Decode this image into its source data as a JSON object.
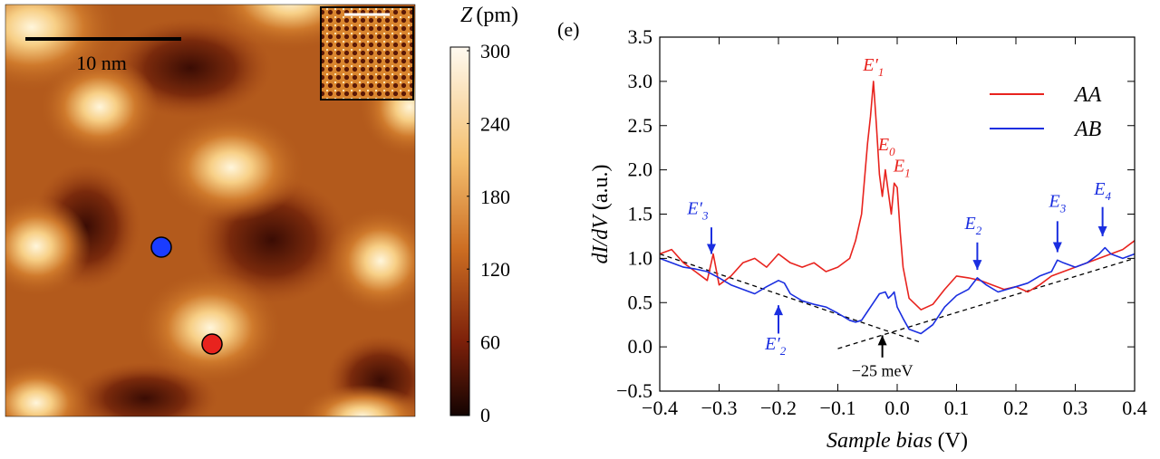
{
  "stm_panel": {
    "scalebar_label": "10 nm",
    "colorbar": {
      "title_var": "Z",
      "title_unit": "(pm)",
      "ticks": [
        "300",
        "240",
        "180",
        "120",
        "60",
        "0"
      ],
      "colors": [
        "#fffaf0",
        "#f7c67c",
        "#c8691f",
        "#7a1f0a",
        "#1a0502"
      ]
    },
    "markers": [
      {
        "name": "blue-marker",
        "color": "#1a3cff"
      },
      {
        "name": "red-marker",
        "color": "#e8231e"
      }
    ]
  },
  "chart_data": {
    "type": "line",
    "panel_label": "(e)",
    "xlabel_main": "Sample bias",
    "xlabel_unit": "(V)",
    "ylabel_main": "dI/dV",
    "ylabel_unit": "(a.u.)",
    "xlim": [
      -0.4,
      0.4
    ],
    "ylim": [
      -0.5,
      3.5
    ],
    "xticks": [
      "-0.4",
      "-0.3",
      "-0.2",
      "-0.1",
      "0.0",
      "0.1",
      "0.2",
      "0.3",
      "0.4"
    ],
    "yticks": [
      "-0.5",
      "0.0",
      "0.5",
      "1.0",
      "1.5",
      "2.0",
      "2.5",
      "3.0",
      "3.5"
    ],
    "legend_position": "top-right",
    "series": [
      {
        "name": "AA",
        "color": "#e8231e",
        "x": [
          -0.4,
          -0.38,
          -0.36,
          -0.34,
          -0.32,
          -0.31,
          -0.3,
          -0.28,
          -0.26,
          -0.24,
          -0.22,
          -0.2,
          -0.18,
          -0.16,
          -0.14,
          -0.12,
          -0.1,
          -0.08,
          -0.07,
          -0.06,
          -0.055,
          -0.05,
          -0.045,
          -0.04,
          -0.035,
          -0.03,
          -0.025,
          -0.02,
          -0.015,
          -0.01,
          -0.005,
          0.0,
          0.005,
          0.01,
          0.02,
          0.04,
          0.06,
          0.08,
          0.1,
          0.12,
          0.14,
          0.16,
          0.18,
          0.2,
          0.22,
          0.24,
          0.26,
          0.28,
          0.3,
          0.32,
          0.34,
          0.36,
          0.38,
          0.4
        ],
        "y": [
          1.05,
          1.1,
          0.95,
          0.85,
          0.75,
          1.05,
          0.7,
          0.8,
          0.95,
          1.0,
          0.9,
          1.05,
          0.95,
          0.9,
          0.95,
          0.85,
          0.9,
          1.0,
          1.2,
          1.5,
          1.9,
          2.3,
          2.6,
          3.0,
          2.5,
          1.95,
          1.7,
          2.0,
          1.75,
          1.5,
          1.85,
          1.8,
          1.3,
          0.9,
          0.55,
          0.42,
          0.48,
          0.65,
          0.8,
          0.78,
          0.75,
          0.7,
          0.65,
          0.68,
          0.62,
          0.7,
          0.8,
          0.85,
          0.9,
          0.95,
          1.0,
          1.05,
          1.1,
          1.2
        ]
      },
      {
        "name": "AB",
        "color": "#1a2ee0",
        "x": [
          -0.4,
          -0.38,
          -0.36,
          -0.34,
          -0.32,
          -0.3,
          -0.28,
          -0.26,
          -0.24,
          -0.22,
          -0.2,
          -0.19,
          -0.18,
          -0.16,
          -0.14,
          -0.12,
          -0.1,
          -0.08,
          -0.07,
          -0.06,
          -0.05,
          -0.04,
          -0.03,
          -0.02,
          -0.015,
          -0.01,
          -0.005,
          0.0,
          0.01,
          0.02,
          0.04,
          0.06,
          0.08,
          0.1,
          0.12,
          0.135,
          0.15,
          0.17,
          0.2,
          0.22,
          0.24,
          0.26,
          0.27,
          0.28,
          0.3,
          0.32,
          0.34,
          0.35,
          0.36,
          0.38,
          0.4
        ],
        "y": [
          1.0,
          0.95,
          0.9,
          0.88,
          0.85,
          0.78,
          0.7,
          0.65,
          0.6,
          0.68,
          0.75,
          0.72,
          0.6,
          0.52,
          0.48,
          0.45,
          0.38,
          0.3,
          0.28,
          0.3,
          0.4,
          0.5,
          0.6,
          0.62,
          0.55,
          0.58,
          0.62,
          0.45,
          0.32,
          0.2,
          0.15,
          0.25,
          0.45,
          0.58,
          0.65,
          0.78,
          0.7,
          0.62,
          0.68,
          0.72,
          0.8,
          0.85,
          0.98,
          0.95,
          0.9,
          0.95,
          1.05,
          1.12,
          1.05,
          1.0,
          1.05
        ]
      }
    ],
    "fit_lines": {
      "color": "#000000",
      "left": {
        "x": [
          -0.4,
          0.04
        ],
        "y": [
          1.05,
          0.05
        ]
      },
      "right": {
        "x": [
          -0.1,
          0.4
        ],
        "y": [
          -0.02,
          1.0
        ]
      }
    },
    "annotations": [
      {
        "name": "peak-E1-prime",
        "base": "E",
        "prime": true,
        "sub": "1",
        "color": "#e8231e",
        "x": -0.04,
        "y": 3.12
      },
      {
        "name": "peak-E0",
        "base": "E",
        "prime": false,
        "sub": "0",
        "color": "#e8231e",
        "x": -0.018,
        "y": 2.22
      },
      {
        "name": "peak-E1",
        "base": "E",
        "prime": false,
        "sub": "1",
        "color": "#e8231e",
        "x": 0.008,
        "y": 1.98
      },
      {
        "name": "peak-E3-prime",
        "base": "E",
        "prime": true,
        "sub": "3",
        "color": "#1a2ee0",
        "x": -0.336,
        "y": 1.5,
        "arrow_x": -0.313,
        "arrow_y": 1.35,
        "arrow_to_y": 1.05
      },
      {
        "name": "peak-E2-prime",
        "base": "E",
        "prime": true,
        "sub": "2",
        "color": "#1a2ee0",
        "x": -0.205,
        "y": -0.03,
        "arrow_x": -0.2,
        "arrow_y": 0.15,
        "arrow_to_y": 0.47
      },
      {
        "name": "peak-E2",
        "base": "E",
        "prime": false,
        "sub": "2",
        "color": "#1a2ee0",
        "x": 0.128,
        "y": 1.33,
        "arrow_x": 0.135,
        "arrow_y": 1.18,
        "arrow_to_y": 0.87
      },
      {
        "name": "peak-E3",
        "base": "E",
        "prime": false,
        "sub": "3",
        "color": "#1a2ee0",
        "x": 0.27,
        "y": 1.58,
        "arrow_x": 0.27,
        "arrow_y": 1.42,
        "arrow_to_y": 1.07
      },
      {
        "name": "peak-E4",
        "base": "E",
        "prime": false,
        "sub": "4",
        "color": "#1a2ee0",
        "x": 0.346,
        "y": 1.72,
        "arrow_x": 0.346,
        "arrow_y": 1.58,
        "arrow_to_y": 1.25
      }
    ],
    "crossing": {
      "label": "-25 meV",
      "x": -0.025,
      "arrow_y_from": -0.12,
      "arrow_y_to": 0.13,
      "label_y": -0.33
    }
  }
}
